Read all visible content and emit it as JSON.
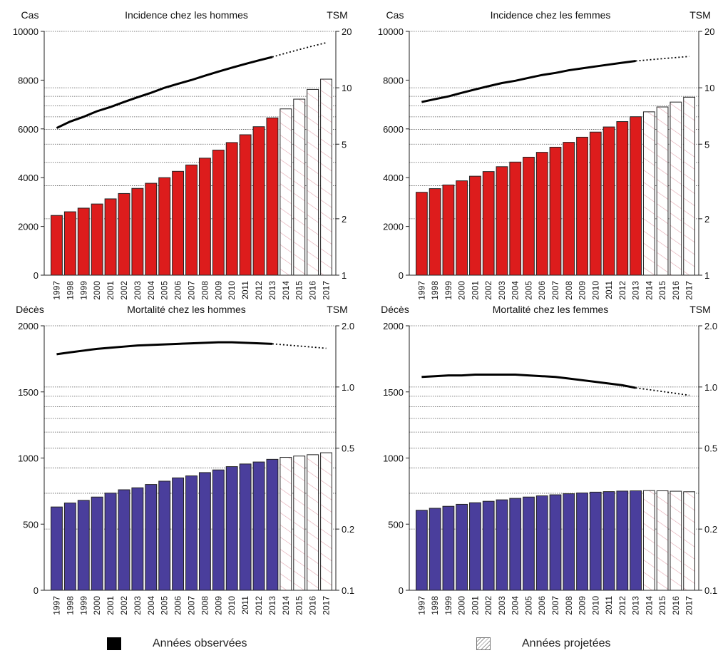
{
  "chart_data": [
    {
      "type": "bar",
      "title": "Incidence chez les hommes",
      "ylabel": "Cas",
      "y2label": "TSM",
      "ylim": [
        0,
        10000
      ],
      "yticks": [
        0,
        2000,
        4000,
        6000,
        8000,
        10000
      ],
      "y2scale": "log",
      "y2lim": [
        1,
        20
      ],
      "y2ticks": [
        "1",
        "2",
        "5",
        "10",
        "20"
      ],
      "y2tick_values": [
        1,
        2,
        5,
        10,
        20
      ],
      "categories": [
        "1997",
        "1998",
        "1999",
        "2000",
        "2001",
        "2002",
        "2003",
        "2004",
        "2005",
        "2006",
        "2007",
        "2008",
        "2009",
        "2010",
        "2011",
        "2012",
        "2013",
        "2014",
        "2015",
        "2016",
        "2017"
      ],
      "values": [
        2450,
        2600,
        2750,
        2920,
        3130,
        3350,
        3560,
        3770,
        4000,
        4260,
        4520,
        4800,
        5130,
        5440,
        5760,
        6090,
        6450,
        6820,
        7220,
        7620,
        8040
      ],
      "bar_color": "#dd1c1c",
      "observed_until": "2013",
      "line": {
        "axis": "y2",
        "values": [
          6.1,
          6.6,
          7.0,
          7.5,
          7.9,
          8.4,
          8.9,
          9.4,
          10.0,
          10.5,
          11.0,
          11.6,
          12.2,
          12.8,
          13.4,
          14.0,
          14.6,
          15.3,
          16.0,
          16.7,
          17.4
        ]
      }
    },
    {
      "type": "bar",
      "title": "Incidence chez les femmes",
      "ylabel": "Cas",
      "y2label": "TSM",
      "ylim": [
        0,
        10000
      ],
      "yticks": [
        0,
        2000,
        4000,
        6000,
        8000,
        10000
      ],
      "y2scale": "log",
      "y2lim": [
        1,
        20
      ],
      "y2ticks": [
        "1",
        "2",
        "5",
        "10",
        "20"
      ],
      "y2tick_values": [
        1,
        2,
        5,
        10,
        20
      ],
      "categories": [
        "1997",
        "1998",
        "1999",
        "2000",
        "2001",
        "2002",
        "2003",
        "2004",
        "2005",
        "2006",
        "2007",
        "2008",
        "2009",
        "2010",
        "2011",
        "2012",
        "2013",
        "2014",
        "2015",
        "2016",
        "2017"
      ],
      "values": [
        3400,
        3550,
        3700,
        3870,
        4060,
        4250,
        4450,
        4640,
        4840,
        5040,
        5250,
        5450,
        5660,
        5870,
        6080,
        6300,
        6500,
        6700,
        6900,
        7100,
        7300
      ],
      "bar_color": "#dd1c1c",
      "observed_until": "2013",
      "line": {
        "axis": "y2",
        "values": [
          8.4,
          8.7,
          9.0,
          9.4,
          9.8,
          10.2,
          10.6,
          10.9,
          11.3,
          11.7,
          12.0,
          12.4,
          12.7,
          13.0,
          13.3,
          13.6,
          13.9,
          14.1,
          14.3,
          14.5,
          14.7
        ]
      }
    },
    {
      "type": "bar",
      "title": "Mortalité chez les hommes",
      "ylabel": "Décès",
      "y2label": "TSM",
      "ylim": [
        0,
        2000
      ],
      "yticks": [
        0,
        500,
        1000,
        1500,
        2000
      ],
      "y2scale": "log",
      "y2lim": [
        0.1,
        2.0
      ],
      "y2ticks": [
        "0.1",
        "0.2",
        "0.5",
        "1.0",
        "2.0"
      ],
      "y2tick_values": [
        0.1,
        0.2,
        0.5,
        1.0,
        2.0
      ],
      "categories": [
        "1997",
        "1998",
        "1999",
        "2000",
        "2001",
        "2002",
        "2003",
        "2004",
        "2005",
        "2006",
        "2007",
        "2008",
        "2009",
        "2010",
        "2011",
        "2012",
        "2013",
        "2014",
        "2015",
        "2016",
        "2017"
      ],
      "values": [
        630,
        660,
        680,
        705,
        735,
        760,
        775,
        800,
        825,
        850,
        865,
        890,
        910,
        935,
        955,
        970,
        990,
        1005,
        1015,
        1025,
        1040
      ],
      "bar_color": "#4a3e9c",
      "observed_until": "2013",
      "line": {
        "axis": "y2",
        "values": [
          1.45,
          1.48,
          1.51,
          1.54,
          1.56,
          1.58,
          1.6,
          1.61,
          1.62,
          1.63,
          1.64,
          1.65,
          1.66,
          1.66,
          1.65,
          1.64,
          1.63,
          1.61,
          1.59,
          1.57,
          1.55
        ]
      }
    },
    {
      "type": "bar",
      "title": "Mortalité chez les femmes",
      "ylabel": "Décès",
      "y2label": "TSM",
      "ylim": [
        0,
        2000
      ],
      "yticks": [
        0,
        500,
        1000,
        1500,
        2000
      ],
      "y2scale": "log",
      "y2lim": [
        0.1,
        2.0
      ],
      "y2ticks": [
        "0.1",
        "0.2",
        "0.5",
        "1.0",
        "2.0"
      ],
      "y2tick_values": [
        0.1,
        0.2,
        0.5,
        1.0,
        2.0
      ],
      "categories": [
        "1997",
        "1998",
        "1999",
        "2000",
        "2001",
        "2002",
        "2003",
        "2004",
        "2005",
        "2006",
        "2007",
        "2008",
        "2009",
        "2010",
        "2011",
        "2012",
        "2013",
        "2014",
        "2015",
        "2016",
        "2017"
      ],
      "values": [
        605,
        620,
        635,
        650,
        662,
        673,
        684,
        695,
        705,
        714,
        722,
        730,
        736,
        742,
        746,
        750,
        752,
        754,
        752,
        749,
        745
      ],
      "bar_color": "#4a3e9c",
      "observed_until": "2013",
      "line": {
        "axis": "y2",
        "values": [
          1.12,
          1.13,
          1.14,
          1.14,
          1.15,
          1.15,
          1.15,
          1.15,
          1.14,
          1.13,
          1.12,
          1.1,
          1.08,
          1.06,
          1.04,
          1.02,
          0.99,
          0.97,
          0.95,
          0.93,
          0.91
        ]
      }
    }
  ],
  "legend": {
    "observed": "Années observées",
    "projected": "Années projetées"
  }
}
